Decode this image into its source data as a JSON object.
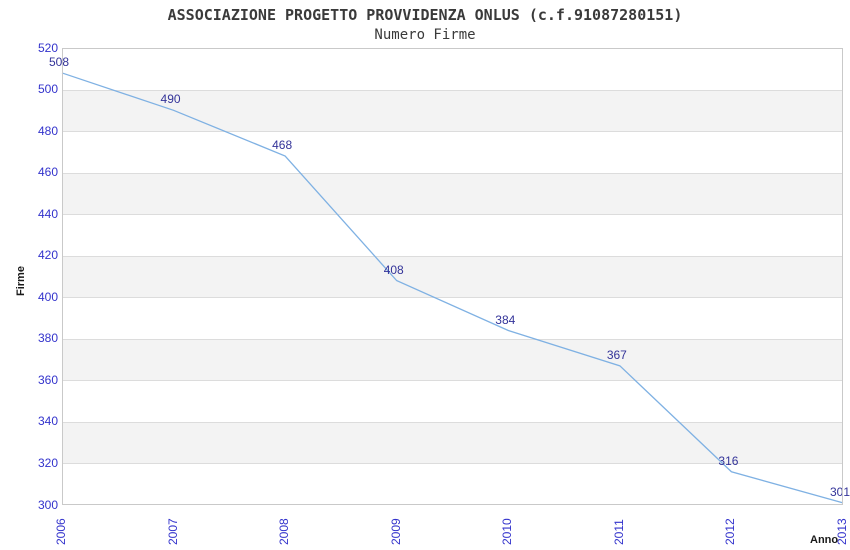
{
  "chart_data": {
    "type": "line",
    "title": "ASSOCIAZIONE PROGETTO PROVVIDENZA ONLUS (c.f.91087280151)",
    "subtitle": "Numero Firme",
    "xlabel": "Anno",
    "ylabel": "Firme",
    "categories": [
      "2006",
      "2007",
      "2008",
      "2009",
      "2010",
      "2011",
      "2012",
      "2013"
    ],
    "values": [
      508,
      490,
      468,
      408,
      384,
      367,
      316,
      301
    ],
    "series_name": "Numero Firme",
    "ylim": [
      300,
      520
    ],
    "yticks": [
      520,
      500,
      480,
      460,
      440,
      420,
      400,
      380,
      360,
      340,
      320,
      300
    ],
    "grid": "horizontal gridlines with alternating shaded bands",
    "legend": "none",
    "markers": "none",
    "data_labels_visible": true,
    "colors": {
      "line": "#7fb1e3",
      "tick_label": "#3333cc",
      "value_label": "#333399",
      "band": "#f3f3f3",
      "gridline": "#dcdcdc",
      "plot_border": "#c9c9c9",
      "title_text": "#3a3a3a",
      "axis_title_text": "#1a1a1a",
      "background": "#ffffff"
    }
  }
}
